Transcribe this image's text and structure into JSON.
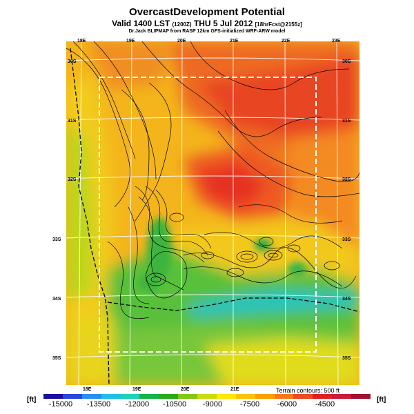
{
  "header": {
    "title": "OvercastDevelopment Potential",
    "valid": "Valid 1400 LST",
    "valid_code": "(1200Z)",
    "date": "THU 5 Jul 2012",
    "forecast_code": "[18hrFcst@2155z]",
    "credit": "Dr.Jack BLIPMAP from RASP 12km GFS-initialized WRF-ARW model"
  },
  "map": {
    "lon_ticks_top": [
      "18E",
      "19E",
      "20E",
      "21E",
      "22E",
      "23E"
    ],
    "lon_ticks_bottom": [
      "18E",
      "19E",
      "20E",
      "21E"
    ],
    "lat_ticks_left": [
      "30S",
      "31S",
      "32S",
      "33S",
      "34S",
      "35S"
    ],
    "lat_ticks_right": [
      "30S",
      "31S",
      "32S",
      "33S",
      "34S",
      "35S"
    ],
    "terrain_note": "Terrain contours: 500 ft"
  },
  "legend": {
    "unit_left": "[ft]",
    "unit_right": "[ft]",
    "labels": [
      "-15000",
      "-13500",
      "-12000",
      "-10500",
      "-9000",
      "-7500",
      "-6000",
      "-4500"
    ],
    "colors": [
      "#1a0fa0",
      "#2a45e0",
      "#2a8ef0",
      "#1ec0e6",
      "#1ed2b4",
      "#16b448",
      "#2aa81c",
      "#82c618",
      "#c8dc10",
      "#ffe80a",
      "#ffc008",
      "#ffa000",
      "#f7781a",
      "#ec4a22",
      "#e02020",
      "#c81c3a",
      "#a01230"
    ]
  },
  "colors": {
    "red_high": "#ea3c20",
    "orange": "#f57e22",
    "yellow": "#f6d01a",
    "green": "#4bbe3c",
    "cyan": "#20c8c0"
  }
}
